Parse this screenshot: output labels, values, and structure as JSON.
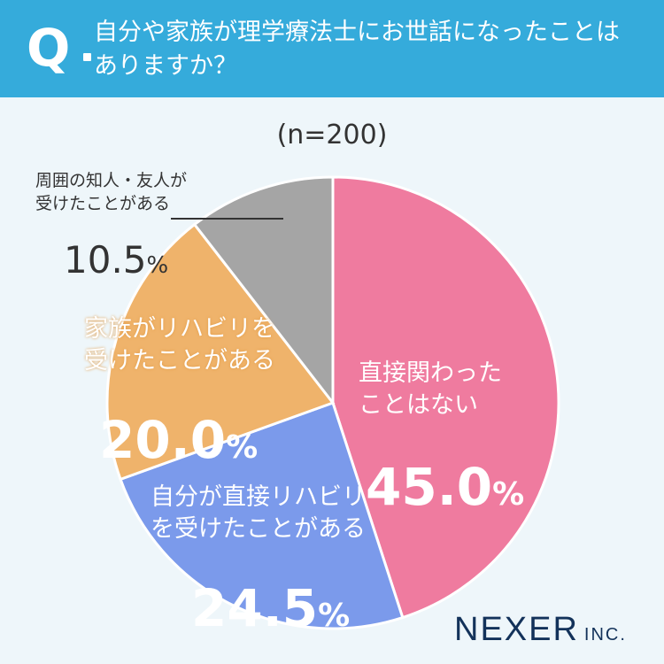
{
  "header": {
    "q_mark": "Q",
    "question": "自分や家族が理学療法士にお世話になったことは\nありますか？"
  },
  "n_label": "(n=200)",
  "chart_data": {
    "type": "pie",
    "n": 200,
    "slices": [
      {
        "label": "直接関わった\nことはない",
        "value": 45.0,
        "color": "#ef7b9f",
        "value_text": "45.0"
      },
      {
        "label": "自分が直接リハビリ\nを受けたことがある",
        "value": 24.5,
        "color": "#7b9aeb",
        "value_text": "24.5"
      },
      {
        "label": "家族がリハビリを\n受けたことがある",
        "value": 20.0,
        "color": "#efb36b",
        "value_text": "20.0"
      },
      {
        "label": "周囲の知人・友人が\n受けたことがある",
        "value": 10.5,
        "color": "#a5a5a5",
        "value_text": "10.5"
      }
    ],
    "unit": "%"
  },
  "logo": {
    "main": "NEXER",
    "sub": "INC."
  }
}
